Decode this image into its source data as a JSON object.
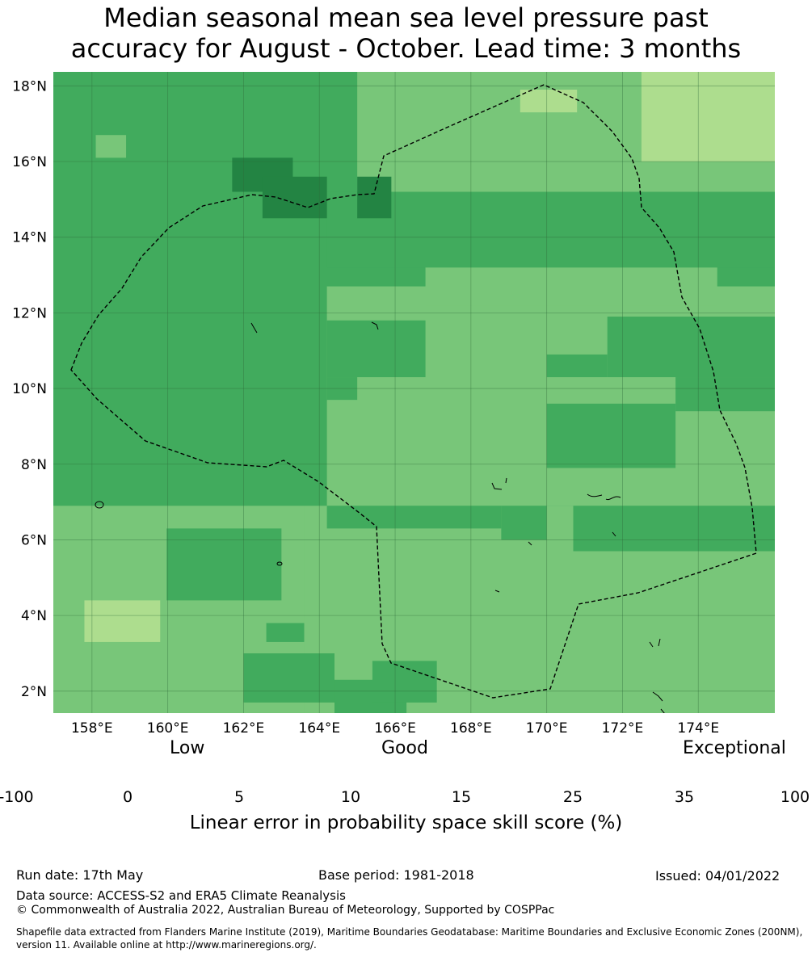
{
  "title_line1": "Median seasonal mean sea level pressure past",
  "title_line2": "accuracy for August - October. Lead time: 3 months",
  "map": {
    "lon_range": [
      156.98,
      176.02
    ],
    "lat_range": [
      1.42,
      18.37
    ],
    "lon_ticks": [
      "158°E",
      "160°E",
      "162°E",
      "164°E",
      "166°E",
      "168°E",
      "170°E",
      "172°E",
      "174°E"
    ],
    "lat_ticks": [
      "18°N",
      "16°N",
      "14°N",
      "12°N",
      "10°N",
      "8°N",
      "6°N",
      "4°N",
      "2°N"
    ],
    "grid_step_deg": 0.833,
    "grid_origin": {
      "lon": 156.98,
      "lat": 1.5
    },
    "cell_rows_from_south": [
      "mmmmmmmmmmmmmmmmmmmmmmm",
      "mmmmmmmmmmmmmmmmmmmmmmm",
      "mmmmmmmmmmmmmmmmmmmmmmm",
      "mmmmmmmmmmmmmmmmmmmmmmm",
      "mmmmmmmmmmmmmmmmmmmmmmm",
      "mmmmmmmmmmmmmmmmmmmmmmm",
      "mmmmmmmmmmmmmmmmmmmmmmm",
      "mmmmmmmmmmmmmmmmmmmmmmm",
      "mmmmmmmmmmmmmmmmmmmmmmm",
      "mmmmmmmmmmmmmmmmmmmmmmm",
      "mmmmmmmmmmmmmmmmmmmmmmm",
      "mmmmmmmmmmmmmmmmmmmmmmm",
      "mmmmmmmmmmmmmmmmmmmmmmm",
      "mmmmmmmmmmmmmmmmmmmmmmm",
      "mmmmmmmmmmmmmmmmmmmmmmm",
      "mmmmmmmmmmmmmmmmmmmmmmm",
      "mmmmmmmmmmmmmmmmmmmmmmm",
      "mmmmmmmmmmmmmmmmmmmmmmm",
      "mmmmmmmmmmmmmmmmmmmmmmm",
      "mmmmmmmmmmmmmmmmmmmmmmm",
      "mmmmmmmmmmmmmmmmmmmmmmm"
    ],
    "skill_regions": [
      {
        "cls": "25-35",
        "lon": [
          156.98,
          176.02
        ],
        "lat": [
          1.42,
          18.37
        ]
      },
      {
        "cls": "15-25",
        "lon": [
          156.98,
          163.6
        ],
        "lat": [
          1.42,
          6.9
        ]
      },
      {
        "cls": "25-35",
        "lon": [
          159.97,
          163.0
        ],
        "lat": [
          4.4,
          6.3
        ]
      },
      {
        "cls": "15-25",
        "lon": [
          163.6,
          176.02
        ],
        "lat": [
          1.42,
          6.9
        ]
      },
      {
        "cls": "25-35",
        "lon": [
          162.0,
          164.4
        ],
        "lat": [
          1.7,
          3.0
        ]
      },
      {
        "cls": "25-35",
        "lon": [
          164.4,
          166.3
        ],
        "lat": [
          1.42,
          2.3
        ]
      },
      {
        "cls": "25-35",
        "lon": [
          165.4,
          167.1
        ],
        "lat": [
          1.7,
          2.8
        ]
      },
      {
        "cls": "10-15",
        "lon": [
          157.8,
          159.8
        ],
        "lat": [
          3.3,
          4.4
        ]
      },
      {
        "cls": "25-35",
        "lon": [
          162.6,
          163.6
        ],
        "lat": [
          3.3,
          3.8
        ]
      },
      {
        "cls": "15-25",
        "lon": [
          164.2,
          176.02
        ],
        "lat": [
          6.9,
          12.7
        ]
      },
      {
        "cls": "25-35",
        "lon": [
          164.2,
          168.8
        ],
        "lat": [
          6.3,
          6.9
        ]
      },
      {
        "cls": "25-35",
        "lon": [
          168.8,
          170.0
        ],
        "lat": [
          6.0,
          6.9
        ]
      },
      {
        "cls": "25-35",
        "lon": [
          170.7,
          176.02
        ],
        "lat": [
          5.7,
          6.9
        ]
      },
      {
        "cls": "25-35",
        "lon": [
          170.0,
          173.4
        ],
        "lat": [
          7.9,
          9.6
        ]
      },
      {
        "cls": "25-35",
        "lon": [
          173.4,
          176.02
        ],
        "lat": [
          9.4,
          10.3
        ]
      },
      {
        "cls": "25-35",
        "lon": [
          171.6,
          176.02
        ],
        "lat": [
          10.3,
          11.9
        ]
      },
      {
        "cls": "25-35",
        "lon": [
          170.0,
          171.6
        ],
        "lat": [
          10.3,
          10.9
        ]
      },
      {
        "cls": "15-25",
        "lon": [
          166.8,
          174.5
        ],
        "lat": [
          12.2,
          13.2
        ]
      },
      {
        "cls": "25-35",
        "lon": [
          164.2,
          166.8
        ],
        "lat": [
          10.3,
          11.8
        ]
      },
      {
        "cls": "25-35",
        "lon": [
          164.2,
          165.0
        ],
        "lat": [
          9.7,
          10.3
        ]
      },
      {
        "cls": "15-25",
        "lon": [
          165.0,
          176.02
        ],
        "lat": [
          14.3,
          18.37
        ]
      },
      {
        "cls": "10-15",
        "lon": [
          169.3,
          170.8
        ],
        "lat": [
          17.3,
          17.9
        ]
      },
      {
        "cls": "10-15",
        "lon": [
          172.5,
          176.02
        ],
        "lat": [
          16.0,
          18.37
        ]
      },
      {
        "cls": "25-35",
        "lon": [
          164.2,
          176.02
        ],
        "lat": [
          13.2,
          15.2
        ]
      },
      {
        "cls": "35-100",
        "lon": [
          161.7,
          163.3
        ],
        "lat": [
          15.2,
          16.1
        ]
      },
      {
        "cls": "35-100",
        "lon": [
          162.5,
          164.2
        ],
        "lat": [
          14.5,
          15.6
        ]
      },
      {
        "cls": "35-100",
        "lon": [
          165.0,
          165.9
        ],
        "lat": [
          14.5,
          15.6
        ]
      },
      {
        "cls": "15-25",
        "lon": [
          158.1,
          158.9
        ],
        "lat": [
          16.1,
          16.7
        ]
      }
    ]
  },
  "colorbar": {
    "label_low": "Low",
    "label_good": "Good",
    "label_exceptional": "Exceptional",
    "bins": [
      {
        "label": "-100",
        "color": "#ffffff"
      },
      {
        "label": "0",
        "color": "#ffffcc"
      },
      {
        "label": "5",
        "color": "#d9f0a3"
      },
      {
        "label": "10",
        "color": "#addd8e"
      },
      {
        "label": "15",
        "color": "#78c679"
      },
      {
        "label": "25",
        "color": "#41ab5d"
      },
      {
        "label": "35",
        "color": "#238443"
      }
    ],
    "last_tick": "100",
    "title": "Linear error in probability space skill score (%)"
  },
  "colors": {
    "10-15": "#addd8e",
    "15-25": "#78c679",
    "25-35": "#41ab5d",
    "35-100": "#238443"
  },
  "footer": {
    "run_date": "Run date: 17th May",
    "base_period": "Base period: 1981-2018",
    "issued": "Issued: 04/01/2022",
    "data_source": "Data source: ACCESS-S2 and ERA5 Climate Reanalysis",
    "copyright": "© Commonwealth of Australia 2022, Australian Bureau of Meteorology, Supported by COSPPac",
    "shapefile_line1": "Shapefile data extracted from Flanders Marine Institute (2019), Maritime Boundaries Geodatabase: Maritime Boundaries and Exclusive Economic Zones (200NM),",
    "shapefile_line2": "version 11. Available online at http://www.marineregions.org/."
  }
}
